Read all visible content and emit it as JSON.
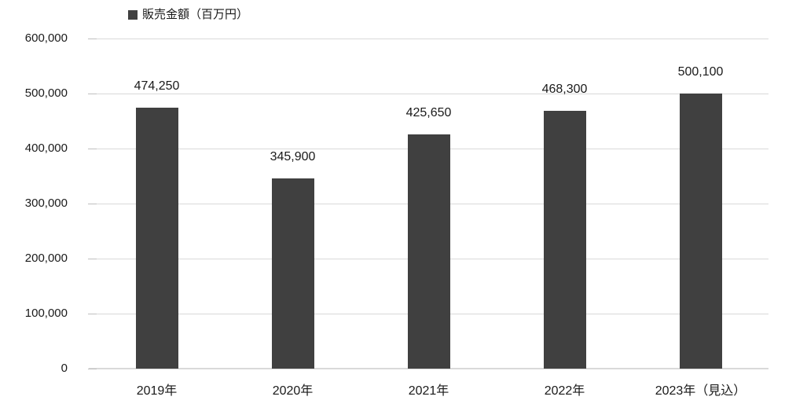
{
  "legend": {
    "label": "販売金額（百万円）",
    "marker_color": "#404040"
  },
  "chart_data": {
    "type": "bar",
    "title": "",
    "categories": [
      "2019年",
      "2020年",
      "2021年",
      "2022年",
      "2023年（見込）"
    ],
    "series": [
      {
        "name": "販売金額（百万円）",
        "values": [
          474250,
          345900,
          425650,
          468300,
          500100
        ],
        "data_labels": [
          "474,250",
          "345,900",
          "425,650",
          "468,300",
          "500,100"
        ],
        "color": "#404040"
      }
    ],
    "xlabel": "",
    "ylabel": "",
    "ylim": [
      0,
      600000
    ],
    "y_tick_step": 100000,
    "y_tick_labels": [
      "0",
      "100,000",
      "200,000",
      "300,000",
      "400,000",
      "500,000",
      "600,000"
    ],
    "grid": true,
    "gridline_color": "#d9d9d9",
    "legend_position": "top-left",
    "data_label_position": "above-bars"
  }
}
